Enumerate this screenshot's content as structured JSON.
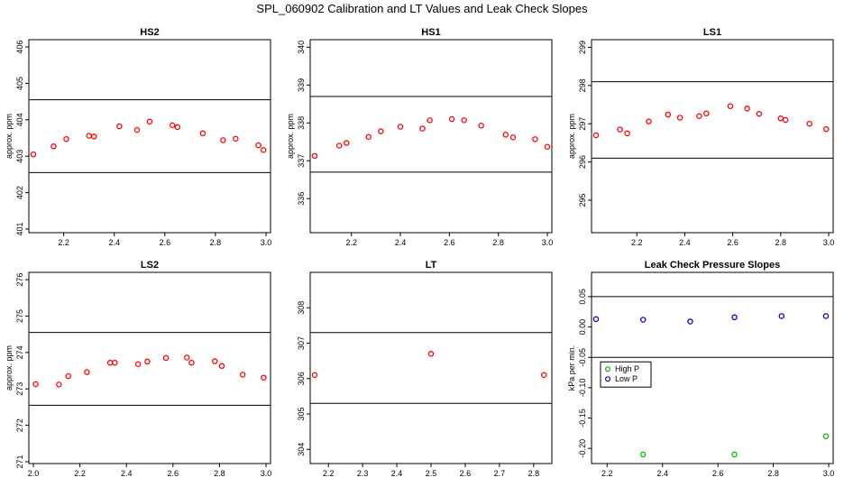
{
  "title": "SPL_060902  Calibration and LT Values and Leak Check Slopes",
  "colors": {
    "calib_points": "#ff0000",
    "high_p": "#00bb00",
    "low_p": "#0000cc",
    "frame": "#000000"
  },
  "chart_data": [
    {
      "type": "scatter",
      "title": "HS2",
      "ylabel": "approx. ppm",
      "xlim": [
        2.08,
        3.0
      ],
      "ylim": [
        400.9,
        406.2
      ],
      "xticks": [
        2.2,
        2.4,
        2.6,
        2.8,
        3.0
      ],
      "xtick_labels": [
        "2.2",
        "2.4",
        "2.6",
        "2.8",
        "3.0"
      ],
      "yticks": [
        401,
        402,
        403,
        404,
        405,
        406
      ],
      "ytick_labels": [
        "401",
        "402",
        "403",
        "404",
        "405",
        "406"
      ],
      "hlines": [
        402.55,
        404.55
      ],
      "series": [
        {
          "color": "calib_points",
          "x": [
            2.08,
            2.16,
            2.21,
            2.3,
            2.32,
            2.42,
            2.49,
            2.54,
            2.63,
            2.65,
            2.75,
            2.83,
            2.88,
            2.97,
            2.99
          ],
          "y": [
            403.05,
            403.27,
            403.47,
            403.56,
            403.54,
            403.82,
            403.72,
            403.95,
            403.85,
            403.8,
            403.63,
            403.44,
            403.48,
            403.3,
            403.17
          ]
        }
      ]
    },
    {
      "type": "scatter",
      "title": "HS1",
      "ylabel": "approx. ppm",
      "xlim": [
        2.05,
        3.0
      ],
      "ylim": [
        335.1,
        340.2
      ],
      "xticks": [
        2.2,
        2.4,
        2.6,
        2.8,
        3.0
      ],
      "xtick_labels": [
        "2.2",
        "2.4",
        "2.6",
        "2.8",
        "3.0"
      ],
      "yticks": [
        336,
        337,
        338,
        339,
        340
      ],
      "ytick_labels": [
        "336",
        "337",
        "338",
        "339",
        "340"
      ],
      "hlines": [
        336.7,
        338.7
      ],
      "series": [
        {
          "color": "calib_points",
          "x": [
            2.05,
            2.15,
            2.18,
            2.27,
            2.32,
            2.4,
            2.49,
            2.52,
            2.61,
            2.66,
            2.73,
            2.83,
            2.86,
            2.95,
            3.0
          ],
          "y": [
            337.13,
            337.4,
            337.47,
            337.63,
            337.78,
            337.9,
            337.85,
            338.07,
            338.1,
            338.07,
            337.93,
            337.69,
            337.62,
            337.57,
            337.37
          ]
        }
      ]
    },
    {
      "type": "scatter",
      "title": "LS1",
      "ylabel": "approx. ppm",
      "xlim": [
        2.03,
        3.0
      ],
      "ylim": [
        294.15,
        299.2
      ],
      "xticks": [
        2.2,
        2.4,
        2.6,
        2.8,
        3.0
      ],
      "xtick_labels": [
        "2.2",
        "2.4",
        "2.6",
        "2.8",
        "3.0"
      ],
      "yticks": [
        295,
        296,
        297,
        298,
        299
      ],
      "ytick_labels": [
        "295",
        "296",
        "297",
        "298",
        "299"
      ],
      "hlines": [
        296.1,
        298.1
      ],
      "series": [
        {
          "color": "calib_points",
          "x": [
            2.03,
            2.13,
            2.16,
            2.25,
            2.33,
            2.38,
            2.46,
            2.49,
            2.59,
            2.66,
            2.71,
            2.8,
            2.82,
            2.92,
            2.99
          ],
          "y": [
            296.7,
            296.85,
            296.75,
            297.06,
            297.24,
            297.16,
            297.2,
            297.27,
            297.46,
            297.4,
            297.26,
            297.14,
            297.1,
            297.0,
            296.86
          ]
        }
      ]
    },
    {
      "type": "scatter",
      "title": "LS2",
      "ylabel": "approx. ppm",
      "xlim": [
        2.0,
        3.0
      ],
      "ylim": [
        270.95,
        276.2
      ],
      "xticks": [
        2.0,
        2.2,
        2.4,
        2.6,
        2.8,
        3.0
      ],
      "xtick_labels": [
        "2.0",
        "2.2",
        "2.4",
        "2.6",
        "2.8",
        "3.0"
      ],
      "yticks": [
        271,
        272,
        273,
        274,
        275,
        276
      ],
      "ytick_labels": [
        "271",
        "272",
        "273",
        "274",
        "275",
        "276"
      ],
      "hlines": [
        272.55,
        274.55
      ],
      "series": [
        {
          "color": "calib_points",
          "x": [
            2.01,
            2.11,
            2.15,
            2.23,
            2.33,
            2.35,
            2.45,
            2.49,
            2.57,
            2.66,
            2.68,
            2.78,
            2.81,
            2.9,
            2.99
          ],
          "y": [
            273.13,
            273.12,
            273.35,
            273.46,
            273.72,
            273.72,
            273.68,
            273.75,
            273.85,
            273.86,
            273.72,
            273.76,
            273.63,
            273.39,
            273.31
          ]
        }
      ]
    },
    {
      "type": "scatter",
      "title": "LT",
      "ylabel": "",
      "xlim": [
        2.16,
        2.84
      ],
      "ylim": [
        303.6,
        309.0
      ],
      "xticks": [
        2.2,
        2.3,
        2.4,
        2.5,
        2.6,
        2.7,
        2.8
      ],
      "xtick_labels": [
        "2.2",
        "2.3",
        "2.4",
        "2.5",
        "2.6",
        "2.7",
        "2.8"
      ],
      "yticks": [
        304,
        305,
        306,
        307,
        308
      ],
      "ytick_labels": [
        "304",
        "305",
        "306",
        "307",
        "308"
      ],
      "hlines": [
        305.3,
        307.3
      ],
      "series": [
        {
          "color": "calib_points",
          "x": [
            2.16,
            2.5,
            2.83
          ],
          "y": [
            306.1,
            306.7,
            306.1
          ]
        }
      ]
    },
    {
      "type": "scatter",
      "title": "Leak Check Pressure Slopes",
      "ylabel": "kPa per min.",
      "xlim": [
        2.16,
        3.0
      ],
      "ylim": [
        -0.225,
        0.09
      ],
      "xticks": [
        2.2,
        2.4,
        2.6,
        2.8,
        3.0
      ],
      "xtick_labels": [
        "2.2",
        "2.4",
        "2.6",
        "2.8",
        "3.0"
      ],
      "yticks": [
        -0.2,
        -0.15,
        -0.1,
        -0.05,
        0.0,
        0.05
      ],
      "ytick_labels": [
        "-0.20",
        "-0.15",
        "-0.10",
        "-0.05",
        "0.00",
        "0.05"
      ],
      "hlines": [
        0.05,
        -0.05
      ],
      "legend": {
        "position": "middle-left",
        "entries": [
          "High P",
          "Low P"
        ]
      },
      "series": [
        {
          "name": "High P",
          "color": "high_p",
          "x": [
            2.33,
            2.66,
            2.99
          ],
          "y": [
            -0.21,
            -0.21,
            -0.18
          ]
        },
        {
          "name": "Low P",
          "color": "low_p",
          "x": [
            2.16,
            2.33,
            2.5,
            2.66,
            2.83,
            2.99
          ],
          "y": [
            0.013,
            0.012,
            0.009,
            0.016,
            0.018,
            0.018
          ]
        }
      ]
    }
  ]
}
